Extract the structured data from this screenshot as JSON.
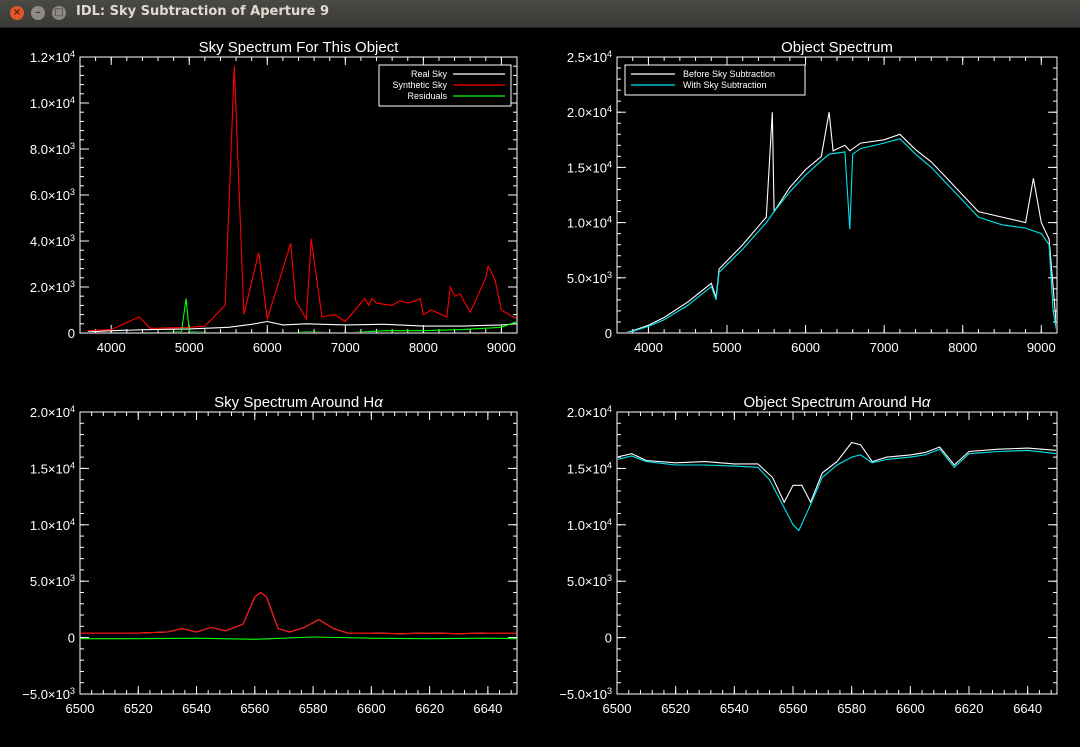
{
  "window": {
    "title": "IDL: Sky Subtraction of Aperture 9",
    "close_glyph": "×",
    "minimize_glyph": "–",
    "maximize_glyph": "□"
  },
  "colors": {
    "white": "#ffffff",
    "red": "#ff0000",
    "green": "#00ff00",
    "cyan": "#00e5ee"
  },
  "chart_data": [
    {
      "type": "line",
      "title": "Sky Spectrum For This Object",
      "xlabel": "",
      "ylabel": "",
      "xlim": [
        3600,
        9200
      ],
      "ylim": [
        0,
        12000
      ],
      "xticks": [
        4000,
        5000,
        6000,
        7000,
        8000,
        9000
      ],
      "yticks": [
        {
          "value": 0,
          "mant": "0",
          "exp": ""
        },
        {
          "value": 2000,
          "mant": "2.0×10",
          "exp": "3"
        },
        {
          "value": 4000,
          "mant": "4.0×10",
          "exp": "3"
        },
        {
          "value": 6000,
          "mant": "6.0×10",
          "exp": "3"
        },
        {
          "value": 8000,
          "mant": "8.0×10",
          "exp": "3"
        },
        {
          "value": 10000,
          "mant": "1.0×10",
          "exp": "4"
        },
        {
          "value": 12000,
          "mant": "1.2×10",
          "exp": "4"
        }
      ],
      "legend": {
        "placement": "top-right",
        "boxed": true
      },
      "series": [
        {
          "name": "Real Sky",
          "color": "#ffffff",
          "x": [
            3700,
            4000,
            4500,
            5000,
            5500,
            5800,
            6000,
            6200,
            6500,
            7000,
            7500,
            8000,
            8500,
            9000,
            9200
          ],
          "y": [
            50,
            100,
            150,
            180,
            250,
            380,
            500,
            350,
            400,
            350,
            380,
            300,
            300,
            350,
            400
          ]
        },
        {
          "name": "Synthetic Sky",
          "color": "#ff0000",
          "x": [
            3700,
            4000,
            4358,
            4500,
            5000,
            5200,
            5460,
            5577,
            5700,
            5890,
            6000,
            6300,
            6364,
            6500,
            6563,
            6700,
            6863,
            7000,
            7250,
            7300,
            7340,
            7400,
            7600,
            7700,
            7800,
            7900,
            7960,
            8000,
            8100,
            8300,
            8345,
            8400,
            8470,
            8600,
            8800,
            8830,
            8880,
            8920,
            9000,
            9200
          ],
          "y": [
            100,
            150,
            700,
            200,
            250,
            300,
            1200,
            11600,
            800,
            3500,
            600,
            3900,
            1400,
            600,
            4100,
            700,
            800,
            500,
            1500,
            1200,
            1500,
            1300,
            1200,
            1400,
            1300,
            1400,
            1500,
            800,
            1000,
            700,
            2000,
            1600,
            1700,
            900,
            2400,
            2900,
            2600,
            2300,
            1000,
            600
          ]
        },
        {
          "name": "Residuals",
          "color": "#00ff00",
          "x": [
            3700,
            4000,
            4500,
            4900,
            4959,
            5000,
            5500,
            6000,
            6500,
            7000,
            7500,
            8000,
            8500,
            9000,
            9200
          ],
          "y": [
            0,
            -50,
            0,
            50,
            1500,
            50,
            0,
            -50,
            50,
            0,
            100,
            100,
            150,
            250,
            500
          ]
        }
      ]
    },
    {
      "type": "line",
      "title": "Object Spectrum",
      "xlabel": "",
      "ylabel": "",
      "xlim": [
        3600,
        9200
      ],
      "ylim": [
        0,
        25000
      ],
      "xticks": [
        4000,
        5000,
        6000,
        7000,
        8000,
        9000
      ],
      "yticks": [
        {
          "value": 0,
          "mant": "0",
          "exp": ""
        },
        {
          "value": 5000,
          "mant": "5.0×10",
          "exp": "3"
        },
        {
          "value": 10000,
          "mant": "1.0×10",
          "exp": "4"
        },
        {
          "value": 15000,
          "mant": "1.5×10",
          "exp": "4"
        },
        {
          "value": 20000,
          "mant": "2.0×10",
          "exp": "4"
        },
        {
          "value": 25000,
          "mant": "2.5×10",
          "exp": "4"
        }
      ],
      "legend": {
        "placement": "top-left",
        "boxed": true
      },
      "series": [
        {
          "name": "Before Sky Subtraction",
          "color": "#ffffff",
          "x": [
            3700,
            3800,
            4000,
            4200,
            4500,
            4800,
            4861,
            4900,
            5200,
            5500,
            5577,
            5600,
            5800,
            6000,
            6200,
            6300,
            6350,
            6500,
            6563,
            6700,
            7000,
            7200,
            7400,
            7600,
            7800,
            8000,
            8200,
            8500,
            8800,
            8900,
            9000,
            9100,
            9200
          ],
          "y": [
            0,
            200,
            700,
            1400,
            2800,
            4500,
            3200,
            5800,
            8000,
            10500,
            20000,
            11000,
            13200,
            14800,
            16000,
            20000,
            16500,
            17000,
            16500,
            17200,
            17500,
            18000,
            16600,
            15500,
            14000,
            12500,
            11000,
            10500,
            10000,
            14000,
            10000,
            8500,
            0
          ]
        },
        {
          "name": "With Sky Subtraction",
          "color": "#00e5ee",
          "x": [
            3700,
            3800,
            4000,
            4200,
            4500,
            4800,
            4861,
            4900,
            5200,
            5500,
            5600,
            5800,
            6000,
            6200,
            6300,
            6500,
            6563,
            6600,
            6700,
            7000,
            7200,
            7400,
            7600,
            7800,
            8000,
            8200,
            8500,
            8800,
            9000,
            9100,
            9150,
            9200
          ],
          "y": [
            0,
            150,
            600,
            1200,
            2500,
            4200,
            3000,
            5500,
            7600,
            10000,
            11000,
            12800,
            14300,
            15600,
            16200,
            16400,
            9400,
            16200,
            16700,
            17200,
            17600,
            16200,
            15000,
            13500,
            12000,
            10500,
            9800,
            9500,
            9000,
            8000,
            2000,
            0
          ]
        }
      ]
    },
    {
      "type": "line",
      "title": "Sky Spectrum Around Hα",
      "title_prefix": "Sky Spectrum Around H",
      "title_greek": "α",
      "xlabel": "",
      "ylabel": "",
      "xlim": [
        6500,
        6650
      ],
      "ylim": [
        -5000,
        20000
      ],
      "xticks": [
        6500,
        6520,
        6540,
        6560,
        6580,
        6600,
        6620,
        6640
      ],
      "yticks": [
        {
          "value": -5000,
          "mant": "−5.0×10",
          "exp": "3"
        },
        {
          "value": 0,
          "mant": "0",
          "exp": ""
        },
        {
          "value": 5000,
          "mant": "5.0×10",
          "exp": "3"
        },
        {
          "value": 10000,
          "mant": "1.0×10",
          "exp": "4"
        },
        {
          "value": 15000,
          "mant": "1.5×10",
          "exp": "4"
        },
        {
          "value": 20000,
          "mant": "2.0×10",
          "exp": "4"
        }
      ],
      "series": [
        {
          "name": "",
          "color": "#ffffff",
          "x": [
            6500,
            6520,
            6530,
            6535,
            6540,
            6545,
            6550,
            6556,
            6560,
            6562,
            6564,
            6568,
            6572,
            6577,
            6582,
            6587,
            6592,
            6600,
            6610,
            6620,
            6630,
            6640,
            6650
          ],
          "y": [
            400,
            400,
            500,
            800,
            500,
            900,
            600,
            1200,
            3600,
            4000,
            3600,
            800,
            500,
            900,
            1600,
            800,
            400,
            400,
            350,
            400,
            350,
            400,
            400
          ]
        },
        {
          "name": "",
          "color": "#ff0000",
          "x": [
            6500,
            6520,
            6530,
            6535,
            6540,
            6545,
            6550,
            6556,
            6560,
            6562,
            6564,
            6568,
            6572,
            6577,
            6582,
            6587,
            6592,
            6600,
            6610,
            6620,
            6630,
            6640,
            6650
          ],
          "y": [
            400,
            400,
            500,
            800,
            500,
            900,
            600,
            1200,
            3600,
            4000,
            3600,
            800,
            500,
            900,
            1600,
            800,
            400,
            400,
            350,
            400,
            350,
            400,
            400
          ]
        },
        {
          "name": "",
          "color": "#00ff00",
          "x": [
            6500,
            6520,
            6540,
            6560,
            6580,
            6600,
            6620,
            6640,
            6650
          ],
          "y": [
            -100,
            -100,
            -50,
            -150,
            50,
            -50,
            -100,
            -50,
            -100
          ]
        }
      ]
    },
    {
      "type": "line",
      "title": "Object Spectrum Around Hα",
      "title_prefix": "Object Spectrum Around H",
      "title_greek": "α",
      "xlabel": "",
      "ylabel": "",
      "xlim": [
        6500,
        6650
      ],
      "ylim": [
        -5000,
        20000
      ],
      "xticks": [
        6500,
        6520,
        6540,
        6560,
        6580,
        6600,
        6620,
        6640
      ],
      "yticks": [
        {
          "value": -5000,
          "mant": "−5.0×10",
          "exp": "3"
        },
        {
          "value": 0,
          "mant": "0",
          "exp": ""
        },
        {
          "value": 5000,
          "mant": "5.0×10",
          "exp": "3"
        },
        {
          "value": 10000,
          "mant": "1.0×10",
          "exp": "4"
        },
        {
          "value": 15000,
          "mant": "1.5×10",
          "exp": "4"
        },
        {
          "value": 20000,
          "mant": "2.0×10",
          "exp": "4"
        }
      ],
      "series": [
        {
          "name": "",
          "color": "#ffffff",
          "x": [
            6500,
            6505,
            6510,
            6520,
            6530,
            6540,
            6548,
            6553,
            6557,
            6560,
            6563,
            6566,
            6570,
            6575,
            6580,
            6583,
            6587,
            6592,
            6600,
            6605,
            6610,
            6615,
            6620,
            6630,
            6640,
            6650
          ],
          "y": [
            16000,
            16300,
            15700,
            15500,
            15600,
            15400,
            15400,
            14200,
            12000,
            13500,
            13500,
            12000,
            14600,
            15600,
            17300,
            17100,
            15600,
            16000,
            16200,
            16400,
            16900,
            15300,
            16500,
            16700,
            16800,
            16600
          ]
        },
        {
          "name": "",
          "color": "#00e5ee",
          "x": [
            6500,
            6505,
            6510,
            6520,
            6530,
            6540,
            6548,
            6552,
            6556,
            6560,
            6562,
            6566,
            6570,
            6575,
            6580,
            6583,
            6587,
            6592,
            6600,
            6605,
            6610,
            6615,
            6620,
            6630,
            6640,
            6650
          ],
          "y": [
            15800,
            16100,
            15600,
            15300,
            15300,
            15200,
            15100,
            14000,
            12000,
            10000,
            9500,
            11800,
            14200,
            15300,
            16000,
            16200,
            15500,
            15800,
            16000,
            16200,
            16700,
            15100,
            16300,
            16500,
            16600,
            16300
          ]
        }
      ]
    }
  ]
}
